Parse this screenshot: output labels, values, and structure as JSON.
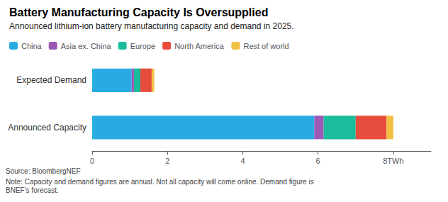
{
  "chart_data": {
    "type": "bar",
    "orientation": "horizontal",
    "stacked": true,
    "title": "Battery Manufacturing Capacity Is Oversupplied",
    "subtitle": "Announced lithium-ion battery manufacturing capacity and demand in 2025.",
    "annotations": [
      "Source: BloombergNEF",
      "Note: Capacity and demand figures are annual. Not all capacity will come online. Demand figure is\nBNEF's forecast."
    ],
    "categories": [
      "Announced Capacity",
      "Expected Demand"
    ],
    "series": [
      {
        "name": "China",
        "color": "#29ABE2",
        "values": [
          5.9,
          1.05
        ]
      },
      {
        "name": "Asia ex. China",
        "color": "#9B59B6",
        "values": [
          0.25,
          0.06
        ]
      },
      {
        "name": "Europe",
        "color": "#1ABC9C",
        "values": [
          0.85,
          0.17
        ]
      },
      {
        "name": "North America",
        "color": "#E74C3C",
        "values": [
          0.82,
          0.3
        ]
      },
      {
        "name": "Rest of world",
        "color": "#F0C040",
        "values": [
          0.18,
          0.07
        ]
      }
    ],
    "xlim": [
      0,
      9.0
    ],
    "xticks": [
      0,
      2,
      4,
      6,
      {
        "value": 8,
        "label": "8TWh"
      }
    ],
    "grid": false,
    "legend": "upper left"
  }
}
